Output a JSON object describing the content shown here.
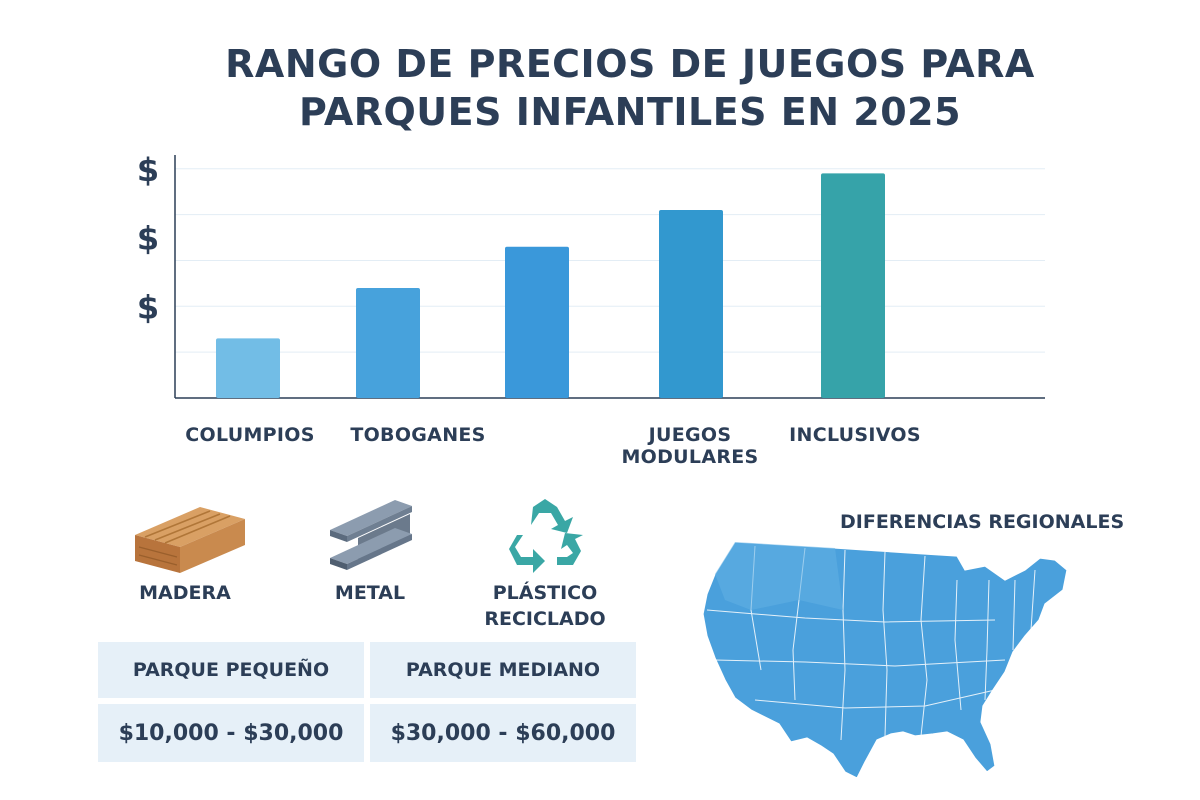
{
  "title_lines": [
    "RANGO DE PRECIOS DE JUEGOS PARA",
    "PARQUES INFANTILES EN 2025"
  ],
  "chart_data": {
    "type": "bar",
    "title": "RANGO DE PRECIOS DE JUEGOS PARA PARQUES INFANTILES EN 2025",
    "categories": [
      "COLUMPIOS",
      "TOBOGANES",
      "",
      "JUEGOS MODULARES",
      "INCLUSIVOS"
    ],
    "category_label_lines": [
      [
        "COLUMPIOS"
      ],
      [
        "TOBOGANES"
      ],
      [],
      [
        "JUEGOS",
        "MODULARES"
      ],
      [
        "INCLUSIVOS"
      ]
    ],
    "values": [
      1.3,
      2.4,
      3.3,
      4.1,
      4.9
    ],
    "colors": [
      "#72bde6",
      "#47a2dc",
      "#3a98da",
      "#3298cf",
      "#36a3a9"
    ],
    "ylim": [
      0,
      5.3
    ],
    "y_tick_labels": [
      "$",
      "$",
      "$"
    ],
    "y_tick_values": [
      2,
      3.5,
      5
    ],
    "gridlines": [
      1,
      2,
      3,
      4,
      5
    ],
    "grid": true,
    "xlabel": "",
    "ylabel": ""
  },
  "materials": [
    {
      "label_lines": [
        "MADERA"
      ],
      "icon": "wood-plank-icon"
    },
    {
      "label_lines": [
        "METAL"
      ],
      "icon": "steel-beam-icon"
    },
    {
      "label_lines": [
        "PLÁSTICO",
        "RECICLADO"
      ],
      "icon": "recycle-icon"
    }
  ],
  "price_table": {
    "headers": [
      "PARQUE PEQUEÑO",
      "PARQUE MEDIANO"
    ],
    "values": [
      "$10,000 - $30,000",
      "$30,000 - $60,000"
    ]
  },
  "regional": {
    "title": "DIFERENCIAS REGIONALES",
    "map_icon": "usa-map-icon",
    "map_color": "#4aa0dc"
  }
}
